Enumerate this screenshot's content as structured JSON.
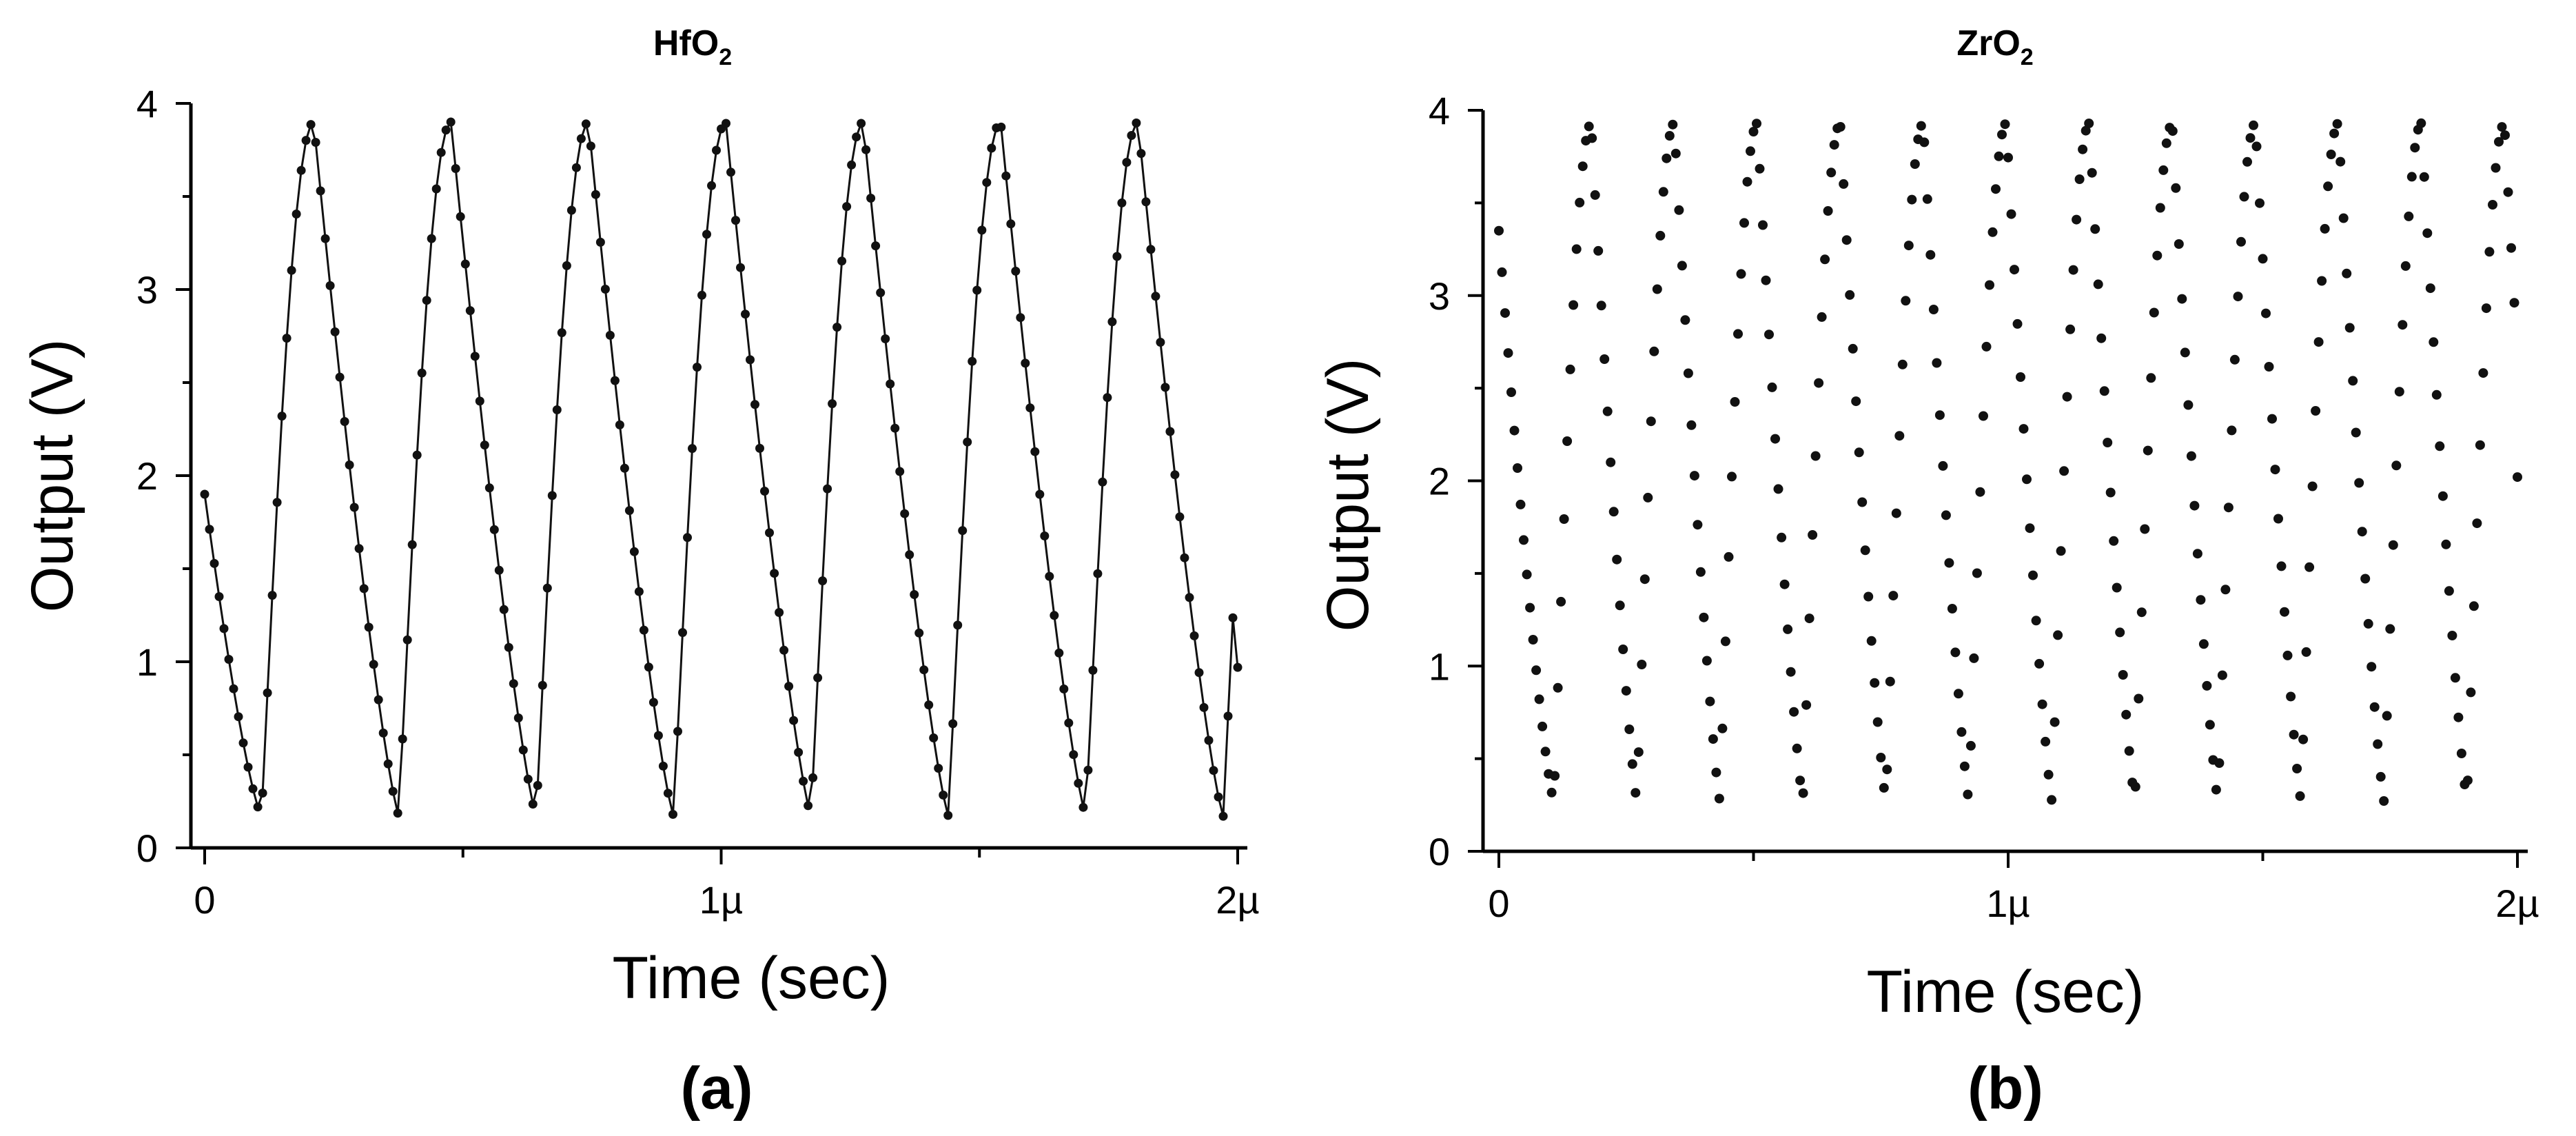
{
  "chart_data": [
    {
      "type": "scatter",
      "title": "HfO",
      "title_subscript": "2",
      "panel_label": "(a)",
      "xlabel": "Time (sec)",
      "ylabel": "Output (V)",
      "xlim": [
        0,
        2e-06
      ],
      "ylim": [
        0,
        4
      ],
      "x_ticks": [
        0,
        1e-06,
        2e-06
      ],
      "x_tick_labels": [
        "0",
        "1µ",
        "2µ"
      ],
      "y_ticks": [
        0,
        1,
        2,
        3,
        4
      ],
      "y_tick_labels": [
        "0",
        "1",
        "2",
        "3",
        "4"
      ],
      "connected": true,
      "series_color": "#111111",
      "waveform": {
        "shape": "sawtooth-oscillation",
        "start_value": 1.9,
        "min": 0.17,
        "max": 3.9,
        "period": 2.66e-07,
        "first_minimum_time": 1.1e-07,
        "rise_fraction": 0.38,
        "cycles": 7,
        "end_value": 0.97
      }
    },
    {
      "type": "scatter",
      "title": "ZrO",
      "title_subscript": "2",
      "panel_label": "(b)",
      "xlabel": "Time (sec)",
      "ylabel": "Output (V)",
      "xlim": [
        0,
        2e-06
      ],
      "ylim": [
        0,
        4
      ],
      "x_ticks": [
        0,
        1e-06,
        2e-06
      ],
      "x_tick_labels": [
        "0",
        "1µ",
        "2µ"
      ],
      "y_ticks": [
        0,
        1,
        2,
        3,
        4
      ],
      "y_tick_labels": [
        "0",
        "1",
        "2",
        "3",
        "4"
      ],
      "connected": false,
      "series_color": "#111111",
      "waveform": {
        "shape": "triangular-oscillation",
        "start_value": 3.35,
        "min": 0.27,
        "max": 3.93,
        "period": 1.63e-07,
        "first_minimum_time": 1.08e-07,
        "rise_fraction": 0.45,
        "cycles": 12,
        "end_value": 2.02
      }
    }
  ]
}
